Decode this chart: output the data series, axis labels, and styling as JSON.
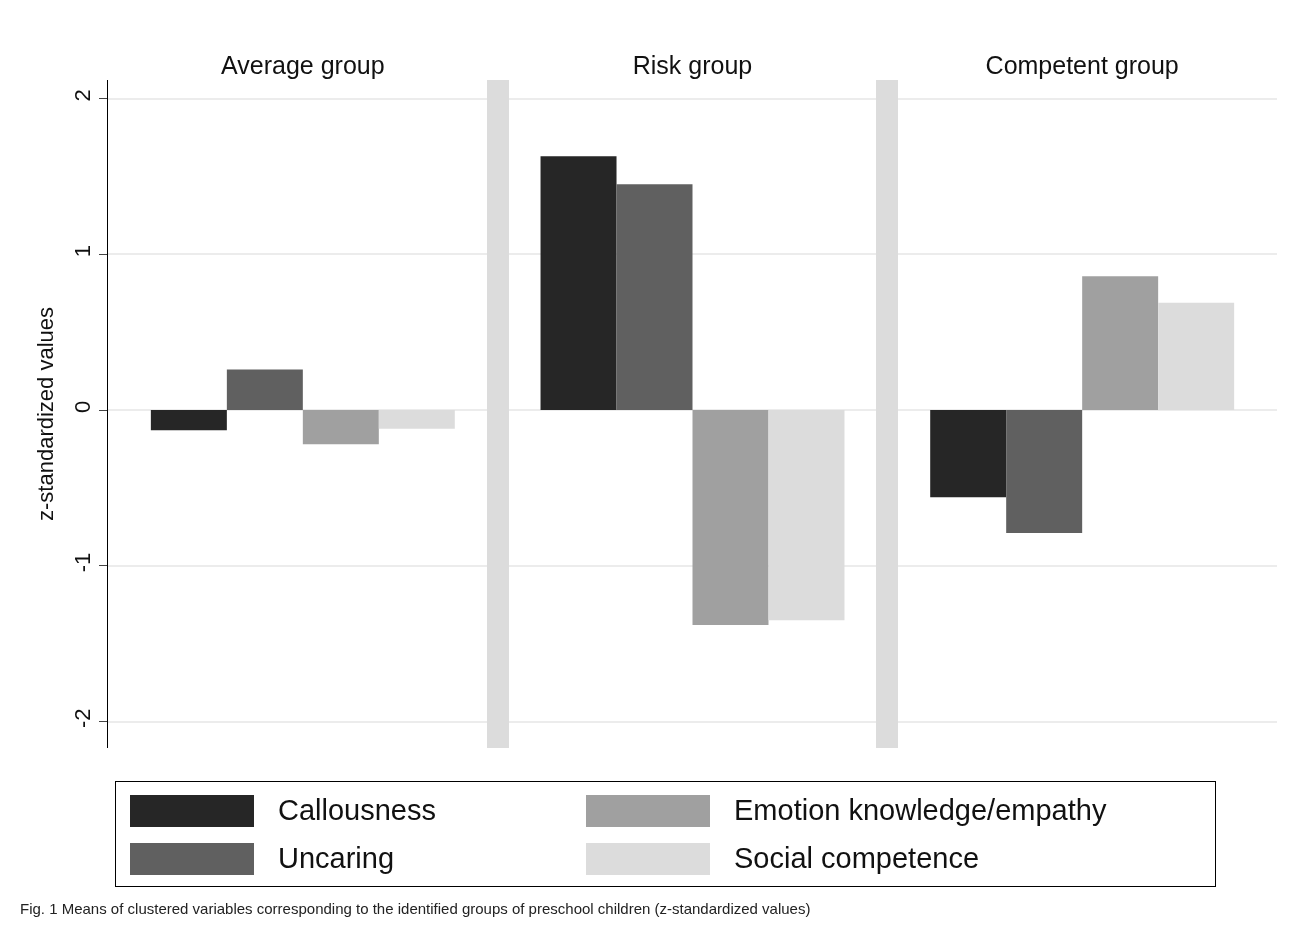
{
  "chart_data": {
    "type": "bar",
    "ylabel": "z-standardized values",
    "categories": [
      "Average group",
      "Risk group",
      "Competent group"
    ],
    "series": [
      {
        "name": "Callousness",
        "color": "#262626",
        "values": [
          -0.13,
          1.63,
          -0.56
        ]
      },
      {
        "name": "Uncaring",
        "color": "#606060",
        "values": [
          0.26,
          1.45,
          -0.79
        ]
      },
      {
        "name": "Emotion knowledge/empathy",
        "color": "#a0a0a0",
        "values": [
          -0.22,
          -1.38,
          0.86
        ]
      },
      {
        "name": "Social competence",
        "color": "#dcdcdc",
        "values": [
          -0.12,
          -1.35,
          0.69
        ]
      }
    ],
    "ylim": [
      -2.17,
      2.12
    ],
    "yticks": [
      -2,
      -1,
      0,
      1,
      2
    ],
    "grid": "y",
    "legend": "bottom",
    "annotations": [
      "Fig. 1  Means of clustered variables corresponding to the identified groups of preschool children (z-standardized values)"
    ]
  }
}
